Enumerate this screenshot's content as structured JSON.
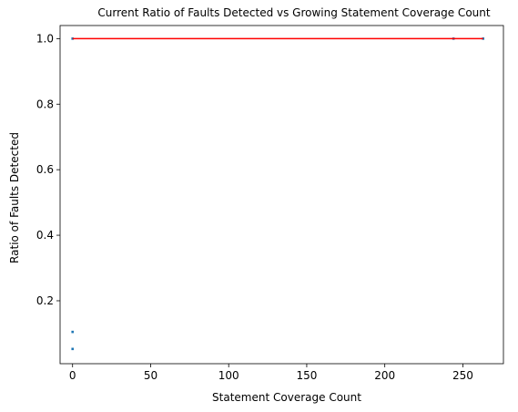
{
  "chart_data": {
    "type": "scatter",
    "title": "Current Ratio of Faults Detected vs Growing Statement Coverage Count",
    "xlabel": "Statement Coverage Count",
    "ylabel": "Ratio of Faults Detected",
    "xlim": [
      -8,
      276
    ],
    "ylim": [
      0.008,
      1.04
    ],
    "xticks": [
      0,
      50,
      100,
      150,
      200,
      250
    ],
    "yticks": [
      0.2,
      0.4,
      0.6,
      0.8,
      1.0
    ],
    "xtick_labels": [
      "0",
      "50",
      "100",
      "150",
      "200",
      "250"
    ],
    "ytick_labels": [
      "0.2",
      "0.4",
      "0.6",
      "0.8",
      "1.0"
    ],
    "grid": false,
    "series": [
      {
        "type": "scatter",
        "color": "#1f77b4",
        "points": [
          [
            0,
            0.053
          ],
          [
            0,
            0.105
          ],
          [
            0,
            1.0
          ],
          [
            244,
            1.0
          ],
          [
            263,
            1.0
          ]
        ]
      },
      {
        "type": "line",
        "color": "#ff0000",
        "points": [
          [
            0,
            1.0
          ],
          [
            263,
            1.0
          ]
        ]
      }
    ]
  }
}
